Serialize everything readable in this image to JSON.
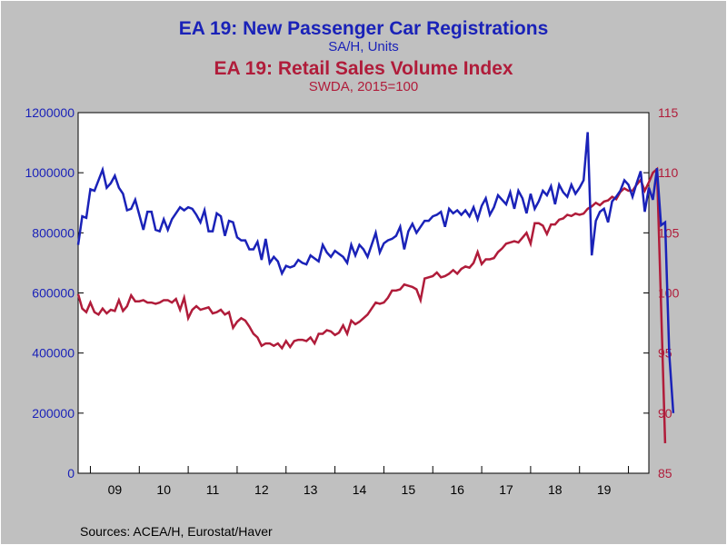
{
  "title1": "EA 19: New Passenger Car Registrations",
  "subtitle1": "SA/H, Units",
  "title2": "EA 19: Retail Sales Volume Index",
  "subtitle2": "SWDA, 2015=100",
  "source": "Sources:  ACEA/H, Eurostat/Haver",
  "colors": {
    "cars": "#1a22b8",
    "retail": "#b01c3a",
    "plot_bg": "#ffffff",
    "page_bg": "#c0c0c0"
  },
  "chart_data": {
    "type": "line",
    "x_tick_labels": [
      "09",
      "10",
      "11",
      "12",
      "13",
      "14",
      "15",
      "16",
      "17",
      "18",
      "19"
    ],
    "x_tick_years": [
      2009,
      2010,
      2011,
      2012,
      2013,
      2014,
      2015,
      2016,
      2017,
      2018,
      2019
    ],
    "xlim": [
      2008.75,
      2020.417
    ],
    "left_axis": {
      "ylim": [
        0,
        1200000
      ],
      "ticks": [
        0,
        200000,
        400000,
        600000,
        800000,
        1000000,
        1200000
      ],
      "tick_labels": [
        "0",
        "200000",
        "400000",
        "600000",
        "800000",
        "1000000",
        "1200000"
      ]
    },
    "right_axis": {
      "ylim": [
        85,
        115
      ],
      "ticks": [
        85,
        90,
        95,
        100,
        105,
        110,
        115
      ],
      "tick_labels": [
        "85",
        "90",
        "95",
        "100",
        "105",
        "110",
        "115"
      ]
    },
    "grid": false,
    "series": [
      {
        "name": "EA 19: New Passenger Car Registrations",
        "axis": "left",
        "start": "2008-10",
        "values": [
          760000,
          855000,
          850000,
          945000,
          940000,
          975000,
          1010000,
          950000,
          965000,
          990000,
          950000,
          930000,
          875000,
          880000,
          910000,
          860000,
          810000,
          870000,
          870000,
          810000,
          805000,
          845000,
          810000,
          845000,
          865000,
          885000,
          875000,
          885000,
          880000,
          860000,
          835000,
          875000,
          805000,
          805000,
          865000,
          855000,
          790000,
          840000,
          835000,
          785000,
          775000,
          775000,
          745000,
          745000,
          770000,
          710000,
          780000,
          700000,
          720000,
          705000,
          665000,
          690000,
          685000,
          690000,
          710000,
          700000,
          695000,
          725000,
          715000,
          705000,
          760000,
          735000,
          720000,
          740000,
          730000,
          720000,
          700000,
          760000,
          725000,
          760000,
          745000,
          720000,
          760000,
          800000,
          735000,
          765000,
          775000,
          780000,
          790000,
          820000,
          745000,
          805000,
          830000,
          800000,
          820000,
          840000,
          840000,
          855000,
          860000,
          870000,
          820000,
          880000,
          865000,
          875000,
          860000,
          875000,
          855000,
          885000,
          845000,
          890000,
          915000,
          860000,
          885000,
          925000,
          910000,
          895000,
          935000,
          880000,
          940000,
          915000,
          865000,
          930000,
          880000,
          905000,
          940000,
          925000,
          955000,
          895000,
          960000,
          935000,
          920000,
          960000,
          930000,
          950000,
          975000,
          1135000,
          725000,
          840000,
          870000,
          880000,
          835000,
          905000,
          920000,
          940000,
          975000,
          960000,
          920000,
          965000,
          1005000,
          870000,
          950000,
          910000,
          1015000,
          825000,
          835000,
          400000,
          200000
        ]
      },
      {
        "name": "EA 19: Retail Sales Volume Index",
        "axis": "right",
        "start": "2008-10",
        "values": [
          99.9,
          98.7,
          98.4,
          99.2,
          98.4,
          98.2,
          98.7,
          98.3,
          98.6,
          98.5,
          99.4,
          98.5,
          98.9,
          99.8,
          99.3,
          99.3,
          99.4,
          99.2,
          99.2,
          99.1,
          99.2,
          99.4,
          99.4,
          99.2,
          99.5,
          98.6,
          99.6,
          97.9,
          98.6,
          98.9,
          98.6,
          98.7,
          98.8,
          98.3,
          98.4,
          98.6,
          98.2,
          98.4,
          97.1,
          97.6,
          97.9,
          97.7,
          97.2,
          96.6,
          96.3,
          95.6,
          95.8,
          95.8,
          95.6,
          95.8,
          95.4,
          96.0,
          95.5,
          96.0,
          96.1,
          96.1,
          96.0,
          96.3,
          95.8,
          96.6,
          96.6,
          96.9,
          96.8,
          96.5,
          96.7,
          97.3,
          96.6,
          97.7,
          97.4,
          97.6,
          97.9,
          98.2,
          98.7,
          99.2,
          99.1,
          99.2,
          99.6,
          100.2,
          100.2,
          100.3,
          100.7,
          100.6,
          100.5,
          100.3,
          99.4,
          101.2,
          101.3,
          101.4,
          101.7,
          101.3,
          101.4,
          101.6,
          101.9,
          101.6,
          102.0,
          102.2,
          102.1,
          102.5,
          103.4,
          102.4,
          102.8,
          102.8,
          102.9,
          103.4,
          103.7,
          104.1,
          104.2,
          104.3,
          104.2,
          104.6,
          105.0,
          104.1,
          105.8,
          105.8,
          105.6,
          104.9,
          105.7,
          105.7,
          106.1,
          106.2,
          106.5,
          106.4,
          106.6,
          106.5,
          106.6,
          107.0,
          107.2,
          107.5,
          107.3,
          107.6,
          107.7,
          108.0,
          107.8,
          108.4,
          108.7,
          108.5,
          108.5,
          109.0,
          109.4,
          108.5,
          109.2,
          110.0,
          110.3,
          99.0,
          87.5
        ]
      }
    ]
  }
}
